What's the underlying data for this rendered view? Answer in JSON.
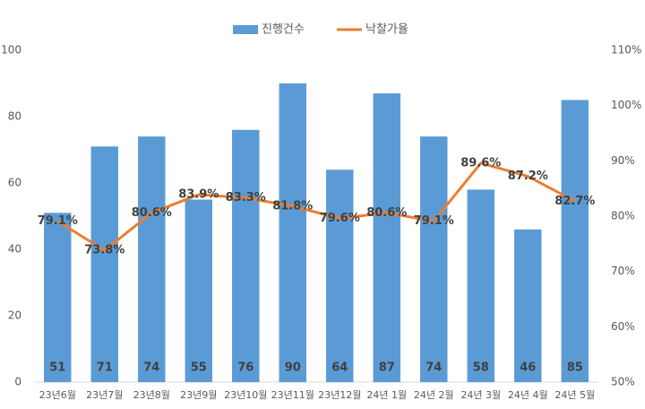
{
  "chart_data": {
    "type": "bar",
    "categories": [
      "23년6월",
      "23년7월",
      "23년8월",
      "23년9월",
      "23년10월",
      "23년11월",
      "23년12월",
      "24년 1월",
      "24년 2월",
      "24년 3월",
      "24년 4월",
      "24년 5월"
    ],
    "series": [
      {
        "name": "진행건수",
        "color": "#5b9bd5",
        "values": [
          51,
          71,
          74,
          55,
          76,
          90,
          64,
          87,
          74,
          58,
          46,
          85
        ]
      },
      {
        "name": "낙찰가율",
        "color": "#ed7d31",
        "type": "line",
        "axis": "y2",
        "values": [
          79.1,
          73.8,
          80.6,
          83.9,
          83.3,
          81.8,
          79.6,
          80.6,
          79.1,
          89.6,
          87.2,
          82.7
        ],
        "value_labels": [
          "79.1%",
          "73.8%",
          "80.6%",
          "83.9%",
          "83.3%",
          "81.8%",
          "79.6%",
          "80.6%",
          "79.1%",
          "89.6%",
          "87.2%",
          "82.7%"
        ]
      }
    ],
    "ylim": [
      0,
      100
    ],
    "yticks": [
      0,
      20,
      40,
      60,
      80,
      100
    ],
    "y2lim": [
      50,
      110
    ],
    "y2ticks": [
      {
        "value": 50,
        "label": "50%"
      },
      {
        "value": 60,
        "label": "60%"
      },
      {
        "value": 70,
        "label": "70%"
      },
      {
        "value": 80,
        "label": "80%"
      },
      {
        "value": 90,
        "label": "90%"
      },
      {
        "value": 100,
        "label": "100%"
      },
      {
        "value": 110,
        "label": "110%"
      }
    ],
    "grid": false,
    "legend": "top"
  }
}
